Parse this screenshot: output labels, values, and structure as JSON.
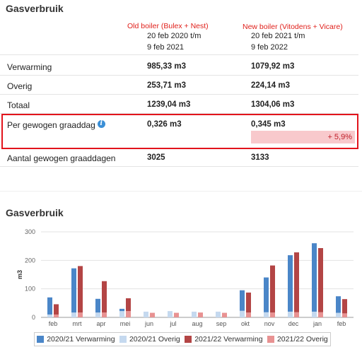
{
  "table": {
    "title": "Gasverbruik",
    "annotations": {
      "old": "Old boiler (Bulex + Nest)",
      "new": "New boiler (Vitodens + Vicare)"
    },
    "period_old": [
      "20 feb 2020 t/m",
      "9 feb 2021"
    ],
    "period_new": [
      "20 feb 2021 t/m",
      "9 feb 2022"
    ],
    "rows": [
      {
        "label": "Verwarming",
        "old": "985,33 m3",
        "new": "1079,92 m3"
      },
      {
        "label": "Overig",
        "old": "253,71 m3",
        "new": "224,14 m3"
      },
      {
        "label": "Totaal",
        "old": "1239,04 m3",
        "new": "1304,06 m3"
      },
      {
        "label": "Per gewogen graaddag",
        "old": "0,326 m3",
        "new": "0,345 m3"
      },
      {
        "label": "Aantal gewogen graaddagen",
        "old": "3025",
        "new": "3133"
      }
    ],
    "diff": "+ 5,9%"
  },
  "chart_data": {
    "type": "bar",
    "title": "Gasverbruik",
    "ylabel": "m3",
    "ylim": [
      0,
      300
    ],
    "yticks": [
      0,
      100,
      200,
      300
    ],
    "categories": [
      "feb",
      "mrt",
      "apr",
      "mei",
      "jun",
      "jul",
      "aug",
      "sep",
      "okt",
      "nov",
      "dec",
      "jan",
      "feb"
    ],
    "stacks": [
      {
        "name": "2020/21",
        "series": [
          {
            "name": "2020/21 Verwarming",
            "color": "#4a86c8",
            "values": [
              60,
              155,
              48,
              8,
              0,
              0,
              0,
              0,
              72,
              122,
              198,
              240,
              58
            ]
          },
          {
            "name": "2020/21 Overig",
            "color": "#c5d9ef",
            "values": [
              10,
              17,
              17,
              22,
              20,
              22,
              20,
              20,
              23,
              18,
              20,
              20,
              16
            ]
          }
        ]
      },
      {
        "name": "2021/22",
        "series": [
          {
            "name": "2021/22 Verwarming",
            "color": "#b34545",
            "values": [
              36,
              163,
              110,
              45,
              0,
              0,
              0,
              0,
              70,
              165,
              210,
              225,
              50
            ]
          },
          {
            "name": "2021/22 Overig",
            "color": "#e89292",
            "values": [
              10,
              17,
              17,
              22,
              16,
              16,
              17,
              16,
              17,
              17,
              18,
              18,
              14
            ]
          }
        ]
      }
    ],
    "legend": [
      {
        "label": "2020/21 Verwarming",
        "color": "#4a86c8"
      },
      {
        "label": "2020/21 Overig",
        "color": "#c5d9ef"
      },
      {
        "label": "2021/22 Verwarming",
        "color": "#b34545"
      },
      {
        "label": "2021/22 Overig",
        "color": "#e89292"
      }
    ],
    "legend_position": "bottom",
    "grid": true
  }
}
